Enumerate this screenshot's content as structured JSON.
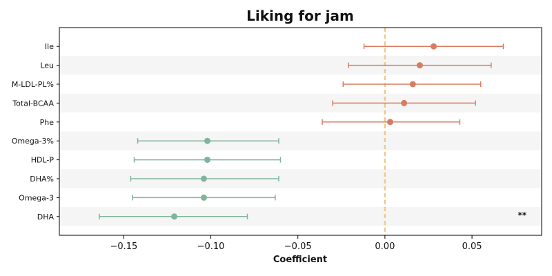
{
  "chart_data": {
    "type": "forest",
    "title": "Liking for jam",
    "xlabel": "Coefficient",
    "xlim": [
      -0.187,
      0.09
    ],
    "xticks": [
      -0.15,
      -0.1,
      -0.05,
      0.0,
      0.05
    ],
    "xtick_labels": [
      "−0.15",
      "−0.10",
      "−0.05",
      "0.00",
      "0.05"
    ],
    "reference_line": 0.0,
    "colors": {
      "positive": "#d97b61",
      "negative": "#7fb59b",
      "reference": "#f0c987",
      "band": "#f5f5f5"
    },
    "rows": [
      {
        "label": "Ile",
        "estimate": 0.028,
        "ci_low": -0.012,
        "ci_high": 0.068,
        "annotation": ""
      },
      {
        "label": "Leu",
        "estimate": 0.02,
        "ci_low": -0.021,
        "ci_high": 0.061,
        "annotation": ""
      },
      {
        "label": "M-LDL-PL%",
        "estimate": 0.016,
        "ci_low": -0.024,
        "ci_high": 0.055,
        "annotation": ""
      },
      {
        "label": "Total-BCAA",
        "estimate": 0.011,
        "ci_low": -0.03,
        "ci_high": 0.052,
        "annotation": ""
      },
      {
        "label": "Phe",
        "estimate": 0.003,
        "ci_low": -0.036,
        "ci_high": 0.043,
        "annotation": ""
      },
      {
        "label": "Omega-3%",
        "estimate": -0.102,
        "ci_low": -0.142,
        "ci_high": -0.061,
        "annotation": ""
      },
      {
        "label": "HDL-P",
        "estimate": -0.102,
        "ci_low": -0.144,
        "ci_high": -0.06,
        "annotation": ""
      },
      {
        "label": "DHA%",
        "estimate": -0.104,
        "ci_low": -0.146,
        "ci_high": -0.061,
        "annotation": ""
      },
      {
        "label": "Omega-3",
        "estimate": -0.104,
        "ci_low": -0.145,
        "ci_high": -0.063,
        "annotation": ""
      },
      {
        "label": "DHA",
        "estimate": -0.121,
        "ci_low": -0.164,
        "ci_high": -0.079,
        "annotation": "**"
      }
    ]
  }
}
